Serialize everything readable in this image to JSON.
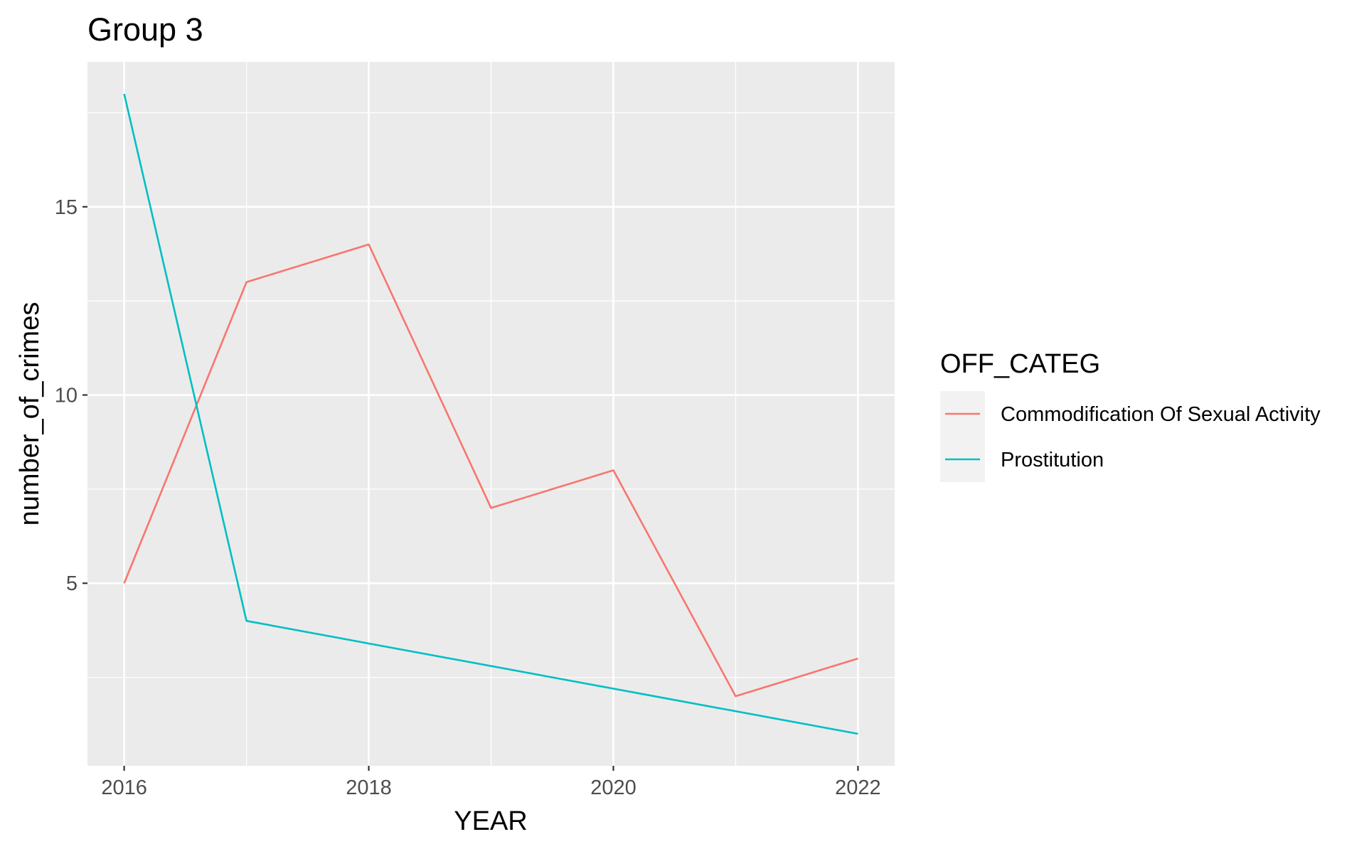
{
  "chart_data": {
    "type": "line",
    "title": "Group 3",
    "xlabel": "YEAR",
    "ylabel": "number_of_crimes",
    "x": [
      2016,
      2017,
      2018,
      2019,
      2020,
      2021,
      2022
    ],
    "series": [
      {
        "name": "Commodification Of Sexual Activity",
        "color": "#F8766D",
        "values": [
          5,
          13,
          14,
          7,
          8,
          2,
          3
        ]
      },
      {
        "name": "Prostitution",
        "color": "#00BFC4",
        "values": [
          18,
          4,
          null,
          null,
          null,
          null,
          1
        ]
      }
    ],
    "xlim": [
      2015.7,
      2022.3
    ],
    "ylim": [
      0.15,
      18.85
    ],
    "x_ticks": [
      "2016",
      "2018",
      "2020",
      "2022"
    ],
    "y_ticks": [
      "5",
      "10",
      "15"
    ],
    "legend": {
      "title": "OFF_CATEG",
      "placement": "right"
    },
    "grid": true,
    "panel_background": "#EBEBEB",
    "grid_color": "#FFFFFF"
  }
}
